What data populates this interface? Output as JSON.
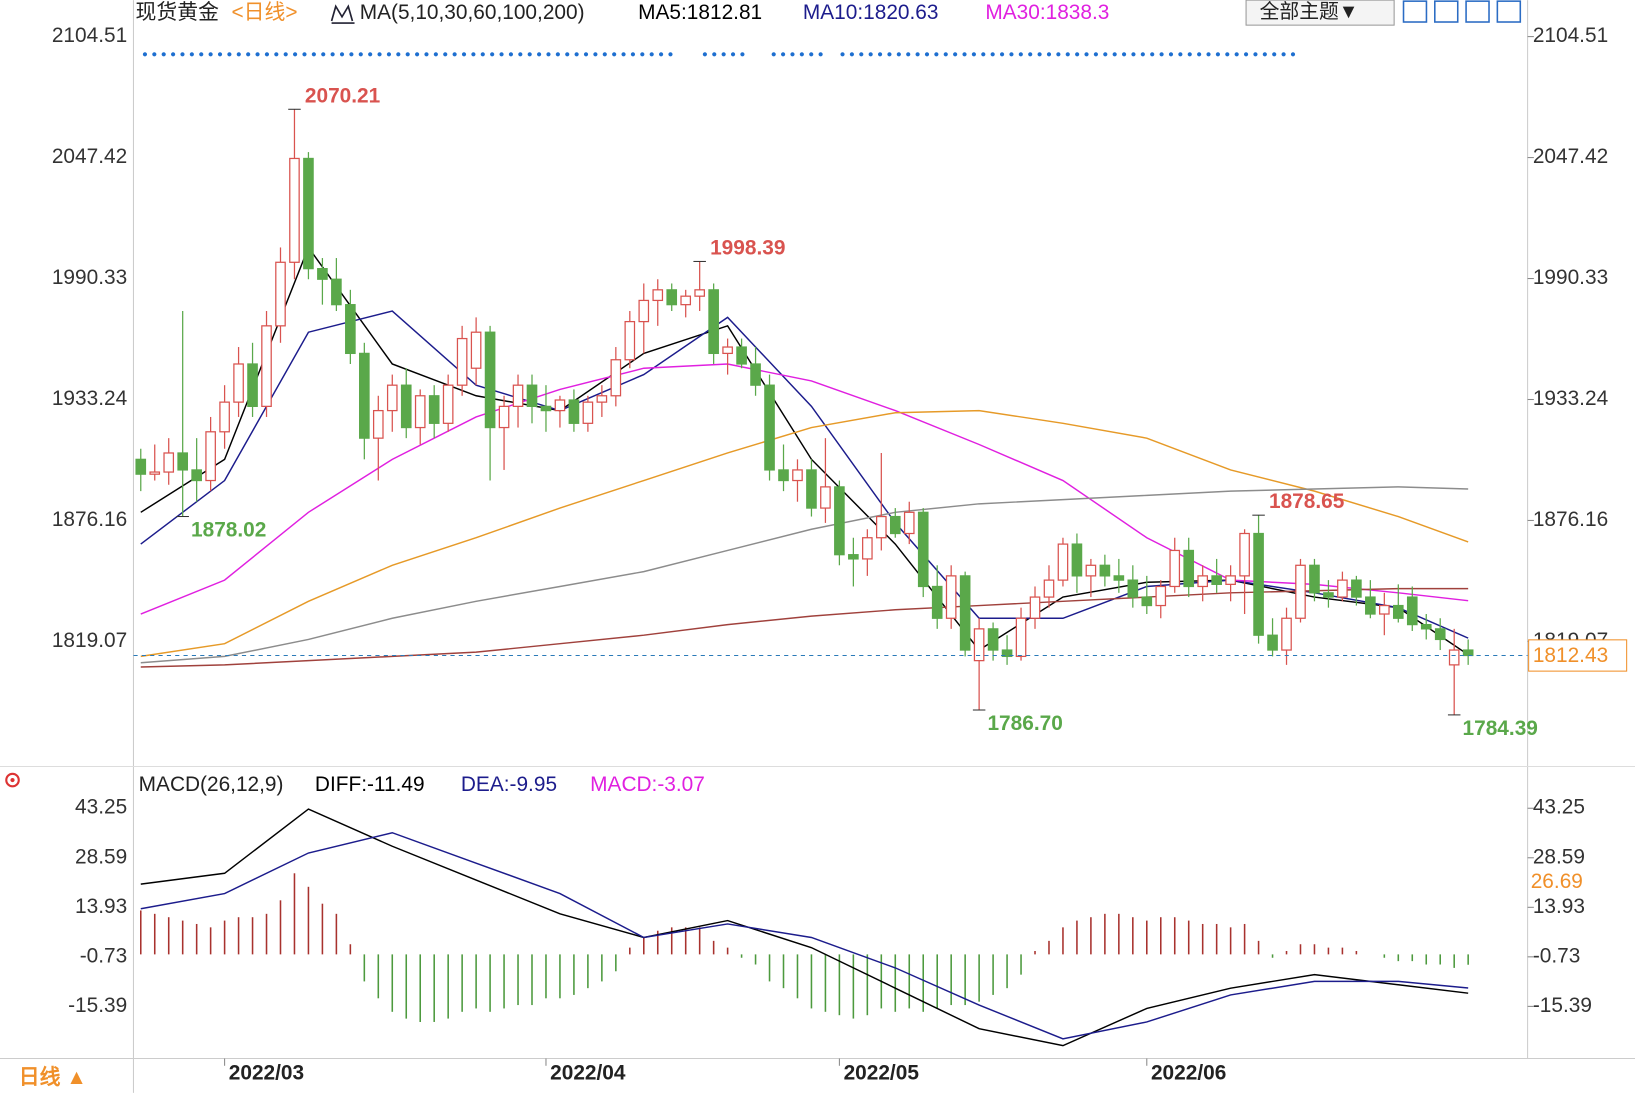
{
  "toolbar": {
    "theme_button": "全部主题▼"
  },
  "bottom_bar": {
    "period": "日线 ▲"
  },
  "chart_data": [
    {
      "type": "candlestick",
      "title": "现货黄金",
      "period": "<日线>",
      "indicator": "MA(5,10,30,60,100,200)",
      "categories": [
        null,
        null,
        null,
        null,
        null,
        null,
        "2022/03",
        null,
        null,
        null,
        null,
        null,
        null,
        null,
        null,
        null,
        null,
        null,
        null,
        null,
        null,
        null,
        null,
        null,
        null,
        null,
        null,
        null,
        null,
        "2022/04",
        null,
        null,
        null,
        null,
        null,
        null,
        null,
        null,
        null,
        null,
        null,
        null,
        null,
        null,
        null,
        null,
        null,
        null,
        null,
        null,
        "2022/05",
        null,
        null,
        null,
        null,
        null,
        null,
        null,
        null,
        null,
        null,
        null,
        null,
        null,
        null,
        null,
        null,
        null,
        null,
        null,
        null,
        null,
        "2022/06",
        null,
        null,
        null,
        null,
        null,
        null,
        null,
        null,
        null,
        null,
        null,
        null,
        null,
        null,
        null,
        null,
        null,
        null,
        null,
        null,
        null,
        null,
        null
      ],
      "open": [
        1905,
        1898,
        1899,
        1908,
        1900,
        1895,
        1918,
        1932,
        1950,
        1930,
        1968,
        1998,
        2047,
        1995,
        1990,
        1978,
        1955,
        1915,
        1928,
        1940,
        1920,
        1935,
        1922,
        1940,
        1948,
        1965,
        1920,
        1930,
        1940,
        1930,
        1928,
        1933,
        1922,
        1932,
        1935,
        1952,
        1970,
        1980,
        1985,
        1978,
        1982,
        1985,
        1955,
        1958,
        1950,
        1940,
        1900,
        1895,
        1900,
        1882,
        1892,
        1860,
        1858,
        1868,
        1878,
        1870,
        1880,
        1845,
        1830,
        1850,
        1810,
        1825,
        1815,
        1812,
        1830,
        1840,
        1848,
        1865,
        1850,
        1855,
        1850,
        1848,
        1840,
        1836,
        1845,
        1862,
        1845,
        1850,
        1846,
        1850,
        1870,
        1822,
        1815,
        1830,
        1855,
        1842,
        1840,
        1848,
        1840,
        1832,
        1836,
        1840,
        1827,
        1825,
        1808,
        1815
      ],
      "high": [
        1910,
        1912,
        1915,
        1975,
        1915,
        1925,
        1940,
        1958,
        1960,
        1975,
        2005,
        2070.21,
        2050,
        2000,
        2000,
        1985,
        1960,
        1935,
        1945,
        1948,
        1938,
        1940,
        1945,
        1968,
        1972,
        1968,
        1935,
        1945,
        1945,
        1940,
        1935,
        1938,
        1935,
        1940,
        1958,
        1975,
        1988,
        1990,
        1988,
        1985,
        1998.39,
        1988,
        1962,
        1962,
        1958,
        1945,
        1912,
        1905,
        1905,
        1915,
        1895,
        1868,
        1872,
        1908,
        1882,
        1885,
        1882,
        1855,
        1855,
        1852,
        1830,
        1828,
        1822,
        1835,
        1845,
        1855,
        1868,
        1870,
        1858,
        1860,
        1858,
        1855,
        1850,
        1848,
        1868,
        1868,
        1855,
        1858,
        1855,
        1872,
        1878.65,
        1830,
        1835,
        1858,
        1858,
        1848,
        1852,
        1850,
        1848,
        1842,
        1846,
        1845,
        1832,
        1830,
        1825,
        1820
      ],
      "low": [
        1890,
        1895,
        1893,
        1878.02,
        1885,
        1890,
        1910,
        1925,
        1925,
        1925,
        1960,
        1990,
        1990,
        1978,
        1975,
        1950,
        1905,
        1895,
        1918,
        1915,
        1912,
        1915,
        1918,
        1935,
        1940,
        1895,
        1900,
        1920,
        1922,
        1918,
        1920,
        1918,
        1918,
        1925,
        1930,
        1948,
        1955,
        1968,
        1975,
        1972,
        1975,
        1950,
        1945,
        1948,
        1935,
        1895,
        1890,
        1885,
        1878,
        1875,
        1855,
        1845,
        1850,
        1862,
        1868,
        1865,
        1840,
        1825,
        1825,
        1812,
        1786.7,
        1810,
        1808,
        1810,
        1825,
        1835,
        1845,
        1842,
        1840,
        1845,
        1842,
        1835,
        1832,
        1830,
        1842,
        1840,
        1838,
        1842,
        1838,
        1832,
        1818,
        1812,
        1808,
        1828,
        1838,
        1835,
        1838,
        1836,
        1830,
        1822,
        1828,
        1824,
        1820,
        1815,
        1784.39,
        1808
      ],
      "close": [
        1898,
        1899,
        1908,
        1900,
        1895,
        1918,
        1932,
        1950,
        1930,
        1968,
        1998,
        2047,
        1995,
        1990,
        1978,
        1955,
        1915,
        1928,
        1940,
        1920,
        1935,
        1922,
        1940,
        1962,
        1965,
        1920,
        1930,
        1940,
        1930,
        1928,
        1933,
        1922,
        1932,
        1935,
        1952,
        1970,
        1980,
        1985,
        1978,
        1982,
        1985,
        1955,
        1958,
        1950,
        1940,
        1900,
        1895,
        1900,
        1882,
        1892,
        1860,
        1858,
        1868,
        1878,
        1870,
        1880,
        1845,
        1830,
        1850,
        1815,
        1825,
        1815,
        1812,
        1830,
        1840,
        1848,
        1865,
        1850,
        1855,
        1850,
        1848,
        1840,
        1836,
        1845,
        1862,
        1845,
        1850,
        1846,
        1850,
        1870,
        1822,
        1815,
        1830,
        1855,
        1842,
        1840,
        1848,
        1840,
        1832,
        1836,
        1830,
        1827,
        1825,
        1820,
        1815,
        1812.43
      ],
      "high_labels": [
        null,
        null,
        null,
        null,
        null,
        null,
        null,
        null,
        null,
        null,
        null,
        "2070.21",
        null,
        null,
        null,
        null,
        null,
        null,
        null,
        null,
        null,
        null,
        null,
        null,
        null,
        null,
        null,
        null,
        null,
        null,
        null,
        null,
        null,
        null,
        null,
        null,
        null,
        null,
        null,
        null,
        "1998.39",
        null,
        null,
        null,
        null,
        null,
        null,
        null,
        null,
        null,
        null,
        null,
        null,
        null,
        null,
        null,
        null,
        null,
        null,
        null,
        null,
        null,
        null,
        null,
        null,
        null,
        null,
        null,
        null,
        null,
        null,
        null,
        null,
        null,
        null,
        null,
        null,
        null,
        null,
        null,
        "1878.65",
        null,
        null,
        null,
        null,
        null,
        null,
        null,
        null,
        null,
        null,
        null,
        null,
        null,
        null,
        null
      ],
      "low_labels": [
        null,
        null,
        null,
        "1878.02",
        null,
        null,
        null,
        null,
        null,
        null,
        null,
        null,
        null,
        null,
        null,
        null,
        null,
        null,
        null,
        null,
        null,
        null,
        null,
        null,
        null,
        null,
        null,
        null,
        null,
        null,
        null,
        null,
        null,
        null,
        null,
        null,
        null,
        null,
        null,
        null,
        null,
        null,
        null,
        null,
        null,
        null,
        null,
        null,
        null,
        null,
        null,
        null,
        null,
        null,
        null,
        null,
        null,
        null,
        null,
        null,
        "1786.70",
        null,
        null,
        null,
        null,
        null,
        null,
        null,
        null,
        null,
        null,
        null,
        null,
        null,
        null,
        null,
        null,
        null,
        null,
        null,
        null,
        null,
        null,
        null,
        null,
        null,
        null,
        null,
        null,
        null,
        null,
        null,
        null,
        null,
        "1784.39",
        null
      ],
      "up_color": "#d9534f",
      "down_color": "#5aa84a",
      "high_label_color": "#d9534f",
      "low_label_color": "#5aa84a",
      "last_price_color": "#f0902a",
      "ylim": [
        1760.03,
        2121.73
      ],
      "yticks": [
        2104.51,
        2047.42,
        1990.33,
        1933.24,
        1876.16,
        1819.07
      ],
      "series": [
        {
          "name": "MA5:1812.81",
          "color": "#000000",
          "x": [
            0,
            6,
            12,
            18,
            24,
            30,
            36,
            42,
            48,
            54,
            60,
            66,
            72,
            78,
            84,
            90,
            95
          ],
          "values": [
            1880,
            1905,
            2005,
            1950,
            1935,
            1928,
            1955,
            1968,
            1905,
            1865,
            1815,
            1840,
            1847,
            1848,
            1840,
            1835,
            1812.81
          ]
        },
        {
          "name": "MA10:1820.63",
          "color": "#1c1c8c",
          "x": [
            0,
            6,
            12,
            18,
            24,
            30,
            36,
            42,
            48,
            54,
            60,
            66,
            72,
            78,
            84,
            90,
            95
          ],
          "values": [
            1865,
            1895,
            1965,
            1975,
            1940,
            1928,
            1945,
            1972,
            1930,
            1875,
            1830,
            1830,
            1845,
            1848,
            1842,
            1835,
            1820.63
          ]
        },
        {
          "name": "MA30:1838.3",
          "color": "#e020e0",
          "x": [
            0,
            6,
            12,
            18,
            24,
            30,
            36,
            42,
            48,
            54,
            60,
            66,
            72,
            78,
            84,
            90,
            95
          ],
          "values": [
            1832,
            1848,
            1880,
            1905,
            1925,
            1938,
            1948,
            1950,
            1942,
            1928,
            1912,
            1895,
            1868,
            1848,
            1846,
            1842,
            1838.3
          ]
        },
        {
          "color": "#e69a28",
          "x": [
            0,
            6,
            12,
            18,
            24,
            30,
            36,
            42,
            48,
            54,
            60,
            66,
            72,
            78,
            84,
            90,
            95
          ],
          "values": [
            1812,
            1818,
            1838,
            1855,
            1868,
            1882,
            1895,
            1908,
            1920,
            1927,
            1928,
            1922,
            1915,
            1900,
            1890,
            1878,
            1866
          ]
        },
        {
          "color": "#8c8c8c",
          "x": [
            0,
            6,
            12,
            18,
            24,
            30,
            36,
            42,
            48,
            54,
            60,
            66,
            72,
            78,
            84,
            90,
            95
          ],
          "values": [
            1809,
            1812,
            1820,
            1830,
            1838,
            1845,
            1852,
            1862,
            1872,
            1880,
            1884,
            1886,
            1888,
            1890,
            1891,
            1892,
            1891
          ]
        },
        {
          "color": "#a0413c",
          "x": [
            0,
            6,
            12,
            18,
            24,
            30,
            36,
            42,
            48,
            54,
            60,
            66,
            72,
            78,
            84,
            90,
            95
          ],
          "values": [
            1807,
            1808,
            1810,
            1812,
            1814,
            1818,
            1822,
            1827,
            1831,
            1834,
            1836,
            1838,
            1840,
            1842,
            1843,
            1844,
            1844
          ]
        }
      ]
    },
    {
      "type": "macd",
      "title": "MACD(26,12,9)",
      "name": "MACD:-3.07",
      "legend_color": "#e020e0",
      "up_color": "#a8322e",
      "down_color": "#4d9a3e",
      "marker": 26.69,
      "marker_color": "#f0902a",
      "values": [
        13,
        12,
        11,
        10,
        9,
        8,
        10,
        11,
        11,
        12,
        16,
        24,
        20,
        15,
        12,
        3,
        -8,
        -13,
        -17,
        -19,
        -20,
        -20,
        -19,
        -17,
        -16,
        -17,
        -16,
        -15,
        -15,
        -13,
        -13,
        -12,
        -10,
        -8,
        -5,
        2,
        5,
        7,
        8,
        8,
        8,
        4,
        2,
        -1,
        -3,
        -8,
        -10,
        -13,
        -16,
        -17,
        -18,
        -19,
        -18,
        -16,
        -17,
        -16,
        -17,
        -16,
        -15,
        -15,
        -14,
        -12,
        -10,
        -6,
        1,
        4,
        8,
        10,
        11,
        12,
        12,
        11,
        10,
        11,
        11,
        10,
        9,
        9,
        8,
        9,
        4,
        -1,
        1,
        3,
        3,
        2,
        2,
        1,
        0,
        -1,
        -2,
        -2,
        -3,
        -3,
        -4,
        -3.07
      ],
      "ylim": [
        -30.81,
        46.34
      ],
      "yticks": [
        43.25,
        28.59,
        13.93,
        -0.73,
        -15.39
      ],
      "series": [
        {
          "name": "DIFF:-11.49",
          "color": "#000000",
          "x": [
            0,
            6,
            12,
            18,
            24,
            30,
            36,
            42,
            48,
            54,
            60,
            66,
            72,
            78,
            84,
            90,
            95
          ],
          "values": [
            20.8,
            24,
            43,
            32,
            22,
            12,
            5,
            10,
            2,
            -10,
            -22,
            -27,
            -16,
            -10,
            -6,
            -9,
            -11.49
          ]
        },
        {
          "name": "DEA:-9.95",
          "color": "#1c1c8c",
          "x": [
            0,
            6,
            12,
            18,
            24,
            30,
            36,
            42,
            48,
            54,
            60,
            66,
            72,
            78,
            84,
            90,
            95
          ],
          "values": [
            13.5,
            18,
            30,
            36,
            27,
            18,
            5,
            9,
            5,
            -4,
            -15,
            -25,
            -20,
            -12,
            -8,
            -8,
            -9.95
          ]
        }
      ]
    }
  ]
}
